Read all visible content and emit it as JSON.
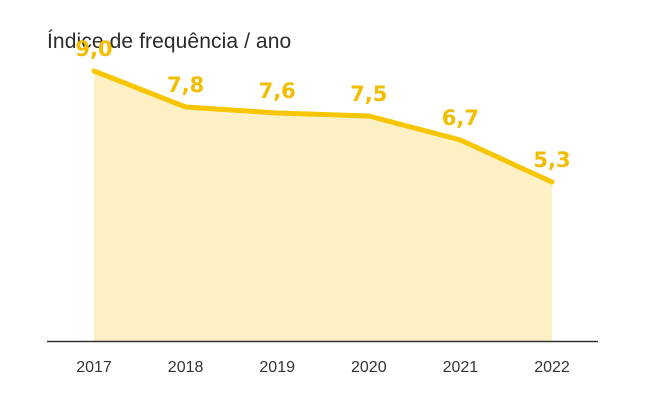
{
  "chart_data": {
    "type": "area",
    "title": "Índice de frequência / ano",
    "xlabel": "",
    "ylabel": "",
    "categories": [
      "2017",
      "2018",
      "2019",
      "2020",
      "2021",
      "2022"
    ],
    "values": [
      9.0,
      7.8,
      7.6,
      7.5,
      6.7,
      5.3
    ],
    "value_labels": [
      "9,0",
      "7,8",
      "7,6",
      "7,5",
      "6,7",
      "5,3"
    ],
    "ylim": [
      0,
      10
    ],
    "grid": false,
    "legend": "none",
    "colors": {
      "line": "#f7c600",
      "fill": "#fdf0c4",
      "label": "#f2bd00",
      "axis": "#333333"
    }
  }
}
